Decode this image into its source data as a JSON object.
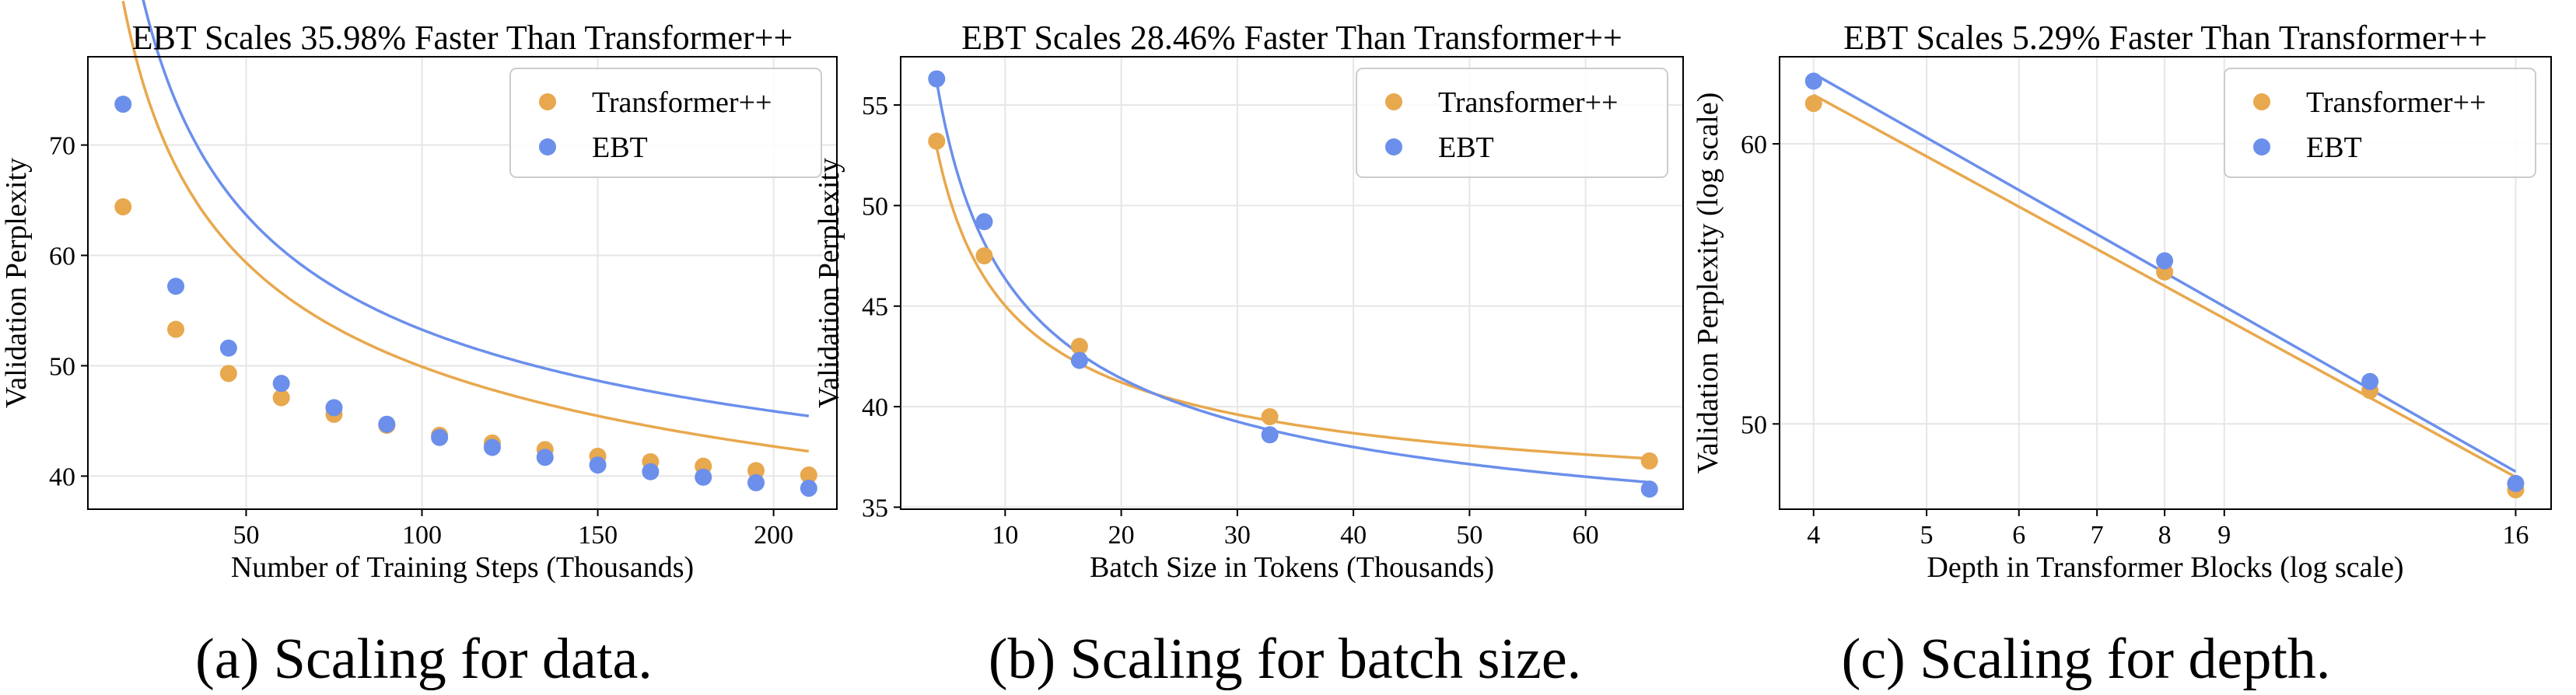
{
  "colors": {
    "transformer": "#E8A84D",
    "ebt": "#6B8FEB",
    "grid": "#e6e6e6",
    "axis": "#000000"
  },
  "chart_data": [
    {
      "type": "scatter",
      "title": "EBT Scales 35.98% Faster Than Transformer++",
      "xlabel": "Number of Training Steps (Thousands)",
      "ylabel": "Validation Perplexity",
      "caption": "(a) Scaling for data.",
      "xlim": [
        5,
        218
      ],
      "ylim": [
        37,
        78
      ],
      "xscale": "linear",
      "yscale": "linear",
      "xticks": [
        50,
        100,
        150,
        200
      ],
      "xtick_labels": [
        "50",
        "100",
        "150",
        "200"
      ],
      "yticks": [
        40,
        50,
        60,
        70
      ],
      "ytick_labels": [
        "40",
        "50",
        "60",
        "70"
      ],
      "grid": true,
      "legend": "top-right",
      "series": [
        {
          "name": "Transformer++",
          "color": "#E8A84D",
          "x": [
            15,
            30,
            45,
            60,
            75,
            90,
            105,
            120,
            135,
            150,
            165,
            180,
            195,
            210
          ],
          "y": [
            64.4,
            53.3,
            49.3,
            47.1,
            45.6,
            44.6,
            43.7,
            43.0,
            42.4,
            41.8,
            41.3,
            40.9,
            40.5,
            40.1
          ],
          "fit": {
            "kind": "power",
            "a": 181.2,
            "b": -0.384,
            "c": 19.0
          }
        },
        {
          "name": "EBT",
          "color": "#6B8FEB",
          "x": [
            15,
            30,
            45,
            60,
            75,
            90,
            105,
            120,
            135,
            150,
            165,
            180,
            195,
            210
          ],
          "y": [
            73.7,
            57.2,
            51.6,
            48.4,
            46.2,
            44.7,
            43.5,
            42.6,
            41.7,
            41.0,
            40.4,
            39.9,
            39.4,
            38.9
          ],
          "fit": {
            "kind": "power",
            "a": 246.3,
            "b": -0.4916,
            "c": 27.67
          }
        }
      ]
    },
    {
      "type": "scatter",
      "title": "EBT Scales 28.46% Faster Than Transformer++",
      "xlabel": "Batch Size in Tokens (Thousands)",
      "ylabel": "Validation Perplexity",
      "caption": "(b) Scaling for batch size.",
      "xlim": [
        1.0,
        68.4
      ],
      "ylim": [
        34.9,
        57.4
      ],
      "xscale": "linear",
      "yscale": "linear",
      "xticks": [
        10,
        20,
        30,
        40,
        50,
        60
      ],
      "xtick_labels": [
        "10",
        "20",
        "30",
        "40",
        "50",
        "60"
      ],
      "yticks": [
        35,
        40,
        45,
        50,
        55
      ],
      "ytick_labels": [
        "35",
        "40",
        "45",
        "50",
        "55"
      ],
      "grid": true,
      "legend": "top-right",
      "series": [
        {
          "name": "Transformer++",
          "color": "#E8A84D",
          "x": [
            4.1,
            8.2,
            16.4,
            32.8,
            65.5
          ],
          "y": [
            53.2,
            47.5,
            43.0,
            39.5,
            37.3
          ],
          "fit": {
            "kind": "power",
            "a": 44.27,
            "b": -0.5922,
            "c": 33.7
          }
        },
        {
          "name": "EBT",
          "color": "#6B8FEB",
          "x": [
            4.1,
            8.2,
            16.4,
            32.8,
            65.5
          ],
          "y": [
            56.3,
            49.2,
            42.3,
            38.6,
            35.9
          ],
          "fit": {
            "kind": "power",
            "a": 55.03,
            "b": -0.5398,
            "c": 30.48
          }
        }
      ]
    },
    {
      "type": "scatter",
      "title": "EBT Scales 5.29% Faster Than Transformer++",
      "xlabel": "Depth in Transformer Blocks (log scale)",
      "ylabel": "Validation Perplexity (log scale)",
      "caption": "(c) Scaling for depth.",
      "xlim": [
        3.74,
        17.16
      ],
      "ylim": [
        47.3,
        63.5
      ],
      "xscale": "log",
      "yscale": "log",
      "xticks": [
        4,
        5,
        6,
        7,
        8,
        9,
        16
      ],
      "xtick_labels": [
        "4",
        "5",
        "6",
        "7",
        "8",
        "9",
        "16"
      ],
      "yticks": [
        50,
        60
      ],
      "ytick_labels": [
        "50",
        "60"
      ],
      "grid": true,
      "legend": "top-right",
      "series": [
        {
          "name": "Transformer++",
          "color": "#E8A84D",
          "x": [
            4,
            8,
            12,
            16
          ],
          "y": [
            61.6,
            55.2,
            51.1,
            47.9
          ],
          "fit": {
            "kind": "loglog"
          }
        },
        {
          "name": "EBT",
          "color": "#6B8FEB",
          "x": [
            4,
            8,
            12,
            16
          ],
          "y": [
            62.5,
            55.6,
            51.4,
            48.1
          ],
          "fit": {
            "kind": "loglog"
          }
        }
      ]
    }
  ]
}
